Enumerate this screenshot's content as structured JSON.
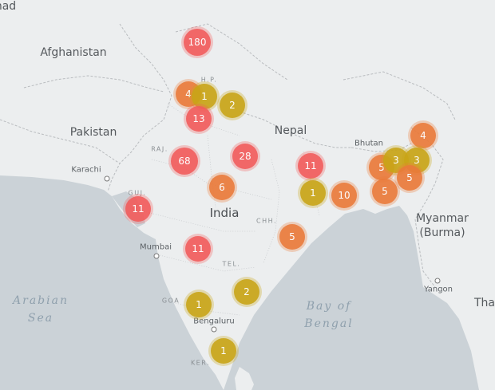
{
  "labels": {
    "afghanistan": "Afghanistan",
    "pakistan": "Pakistan",
    "nepal": "Nepal",
    "bhutan": "Bhutan",
    "india": "India",
    "myanmar_line1": "Myanmar",
    "myanmar_line2": "(Burma)",
    "thailand_partial": "Tha",
    "karachi": "Karachi",
    "mumbai": "Mumbai",
    "bengaluru": "Bengaluru",
    "yangon": "Yangon",
    "hp": "H.P.",
    "raj": "RAJ.",
    "guj": "GUJ.",
    "chh": "CHH.",
    "tel": "TEL.",
    "goa": "GOA",
    "ker": "KER.",
    "arabian_sea_line1": "Arabian",
    "arabian_sea_line2": "Sea",
    "bay_of_bengal_line1": "Bay of",
    "bay_of_bengal_line2": "Bengal",
    "top_partial": "had"
  },
  "colors": {
    "red": "#f25c5c",
    "orange": "#ea7a3a",
    "yellow": "#c9a517"
  },
  "clusters": [
    {
      "id": "kashmir",
      "count": "180",
      "color": "red"
    },
    {
      "id": "punjab-west",
      "count": "4",
      "color": "orange"
    },
    {
      "id": "punjab-east",
      "count": "1",
      "color": "yellow"
    },
    {
      "id": "uttarakhand",
      "count": "2",
      "color": "yellow"
    },
    {
      "id": "delhi",
      "count": "13",
      "color": "red"
    },
    {
      "id": "rajasthan",
      "count": "68",
      "color": "red"
    },
    {
      "id": "uttar-pradesh",
      "count": "28",
      "color": "red"
    },
    {
      "id": "madhya-pradesh",
      "count": "6",
      "color": "orange"
    },
    {
      "id": "bihar",
      "count": "11",
      "color": "red"
    },
    {
      "id": "jharkhand",
      "count": "1",
      "color": "yellow"
    },
    {
      "id": "west-bengal",
      "count": "10",
      "color": "orange"
    },
    {
      "id": "gujarat",
      "count": "11",
      "color": "red"
    },
    {
      "id": "odisha",
      "count": "5",
      "color": "orange"
    },
    {
      "id": "maharashtra",
      "count": "11",
      "color": "red"
    },
    {
      "id": "andhra-pradesh",
      "count": "2",
      "color": "yellow"
    },
    {
      "id": "goa",
      "count": "1",
      "color": "yellow"
    },
    {
      "id": "tamil-nadu",
      "count": "1",
      "color": "yellow"
    },
    {
      "id": "arunachal",
      "count": "4",
      "color": "orange"
    },
    {
      "id": "meghalaya",
      "count": "5",
      "color": "orange"
    },
    {
      "id": "assam",
      "count": "3",
      "color": "yellow"
    },
    {
      "id": "nagaland",
      "count": "3",
      "color": "yellow"
    },
    {
      "id": "manipur",
      "count": "5",
      "color": "orange"
    },
    {
      "id": "mizoram",
      "count": "5",
      "color": "orange"
    }
  ]
}
